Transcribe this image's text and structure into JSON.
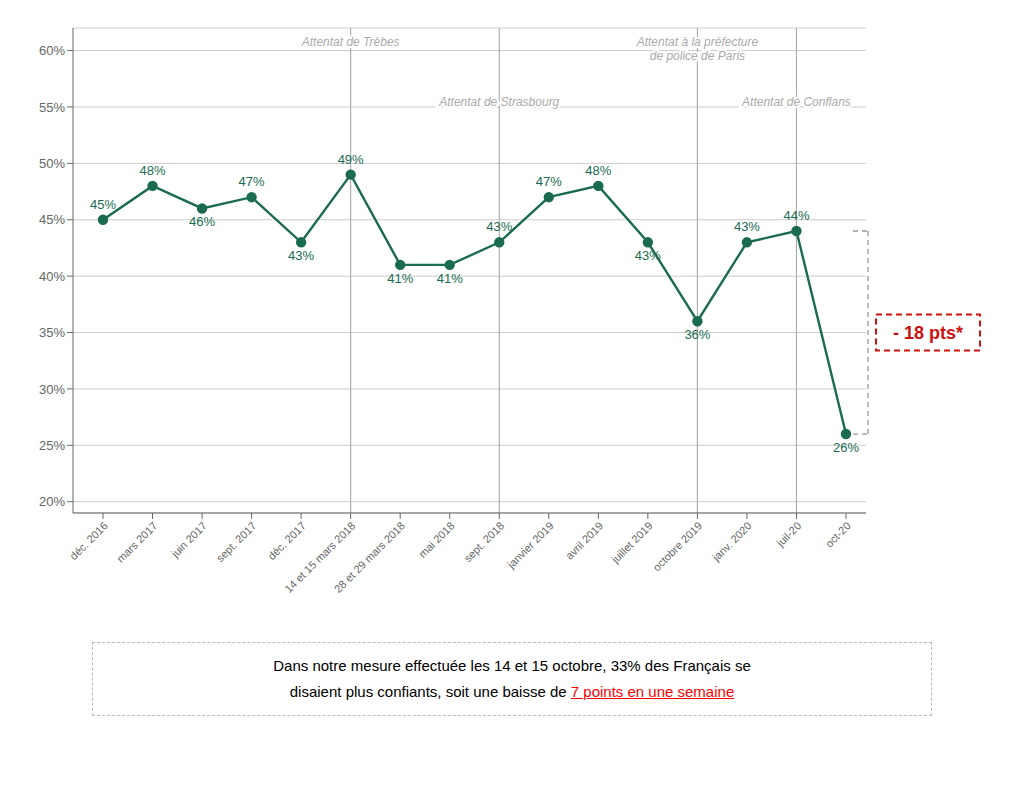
{
  "chart_data": {
    "type": "line",
    "categories": [
      "déc. 2016",
      "mars 2017",
      "juin 2017",
      "sept. 2017",
      "déc. 2017",
      "14 et 15 mars 2018",
      "28 et 29 mars 2018",
      "mai 2018",
      "sept. 2018",
      "janvier 2019",
      "avril 2019",
      "juillet 2019",
      "octobre 2019",
      "janv. 2020",
      "juil-20",
      "oct-20"
    ],
    "values": [
      45,
      48,
      46,
      47,
      43,
      49,
      41,
      41,
      43,
      47,
      48,
      43,
      36,
      43,
      44,
      26
    ],
    "value_labels": [
      "45%",
      "48%",
      "46%",
      "47%",
      "43%",
      "49%",
      "41%",
      "41%",
      "43%",
      "47%",
      "48%",
      "43%",
      "36%",
      "43%",
      "44%",
      "26%"
    ],
    "color": "#1a6b52",
    "ylim": [
      19,
      62
    ],
    "yticks": [
      {
        "value": 20,
        "label": "20%"
      },
      {
        "value": 25,
        "label": "25%"
      },
      {
        "value": 30,
        "label": "30%"
      },
      {
        "value": 35,
        "label": "35%"
      },
      {
        "value": 40,
        "label": "40%"
      },
      {
        "value": 45,
        "label": "45%"
      },
      {
        "value": 50,
        "label": "50%"
      },
      {
        "value": 55,
        "label": "55%"
      },
      {
        "value": 60,
        "label": "60%"
      }
    ],
    "grid": true,
    "data_labels": true,
    "annotations": [
      {
        "text": "Attentat de Trèbes",
        "x": "14 et 15 mars 2018",
        "color": "#aaaaaa"
      },
      {
        "text": "Attentat de Strasbourg",
        "x": "sept. 2018",
        "color": "#aaaaaa"
      },
      {
        "text": "Attentat à la préfecture\nde police de Paris",
        "x": "octobre 2019",
        "color": "#aaaaaa"
      },
      {
        "text": "Attentat de Conflans",
        "x": "juil-20",
        "color": "#aaaaaa"
      },
      {
        "text": "- 18 pts*",
        "x": "oct-20",
        "from": "juil-20",
        "color": "#cc1111"
      }
    ],
    "footnote": [
      [
        {
          "text": "Dans notre mesure effectuée les 14 et 15 octobre, 33% des Français se"
        }
      ],
      [
        {
          "text": "disaient plus confiants, soit une baisse de "
        },
        {
          "text": "7 points en une semaine",
          "color": "red"
        }
      ]
    ]
  }
}
